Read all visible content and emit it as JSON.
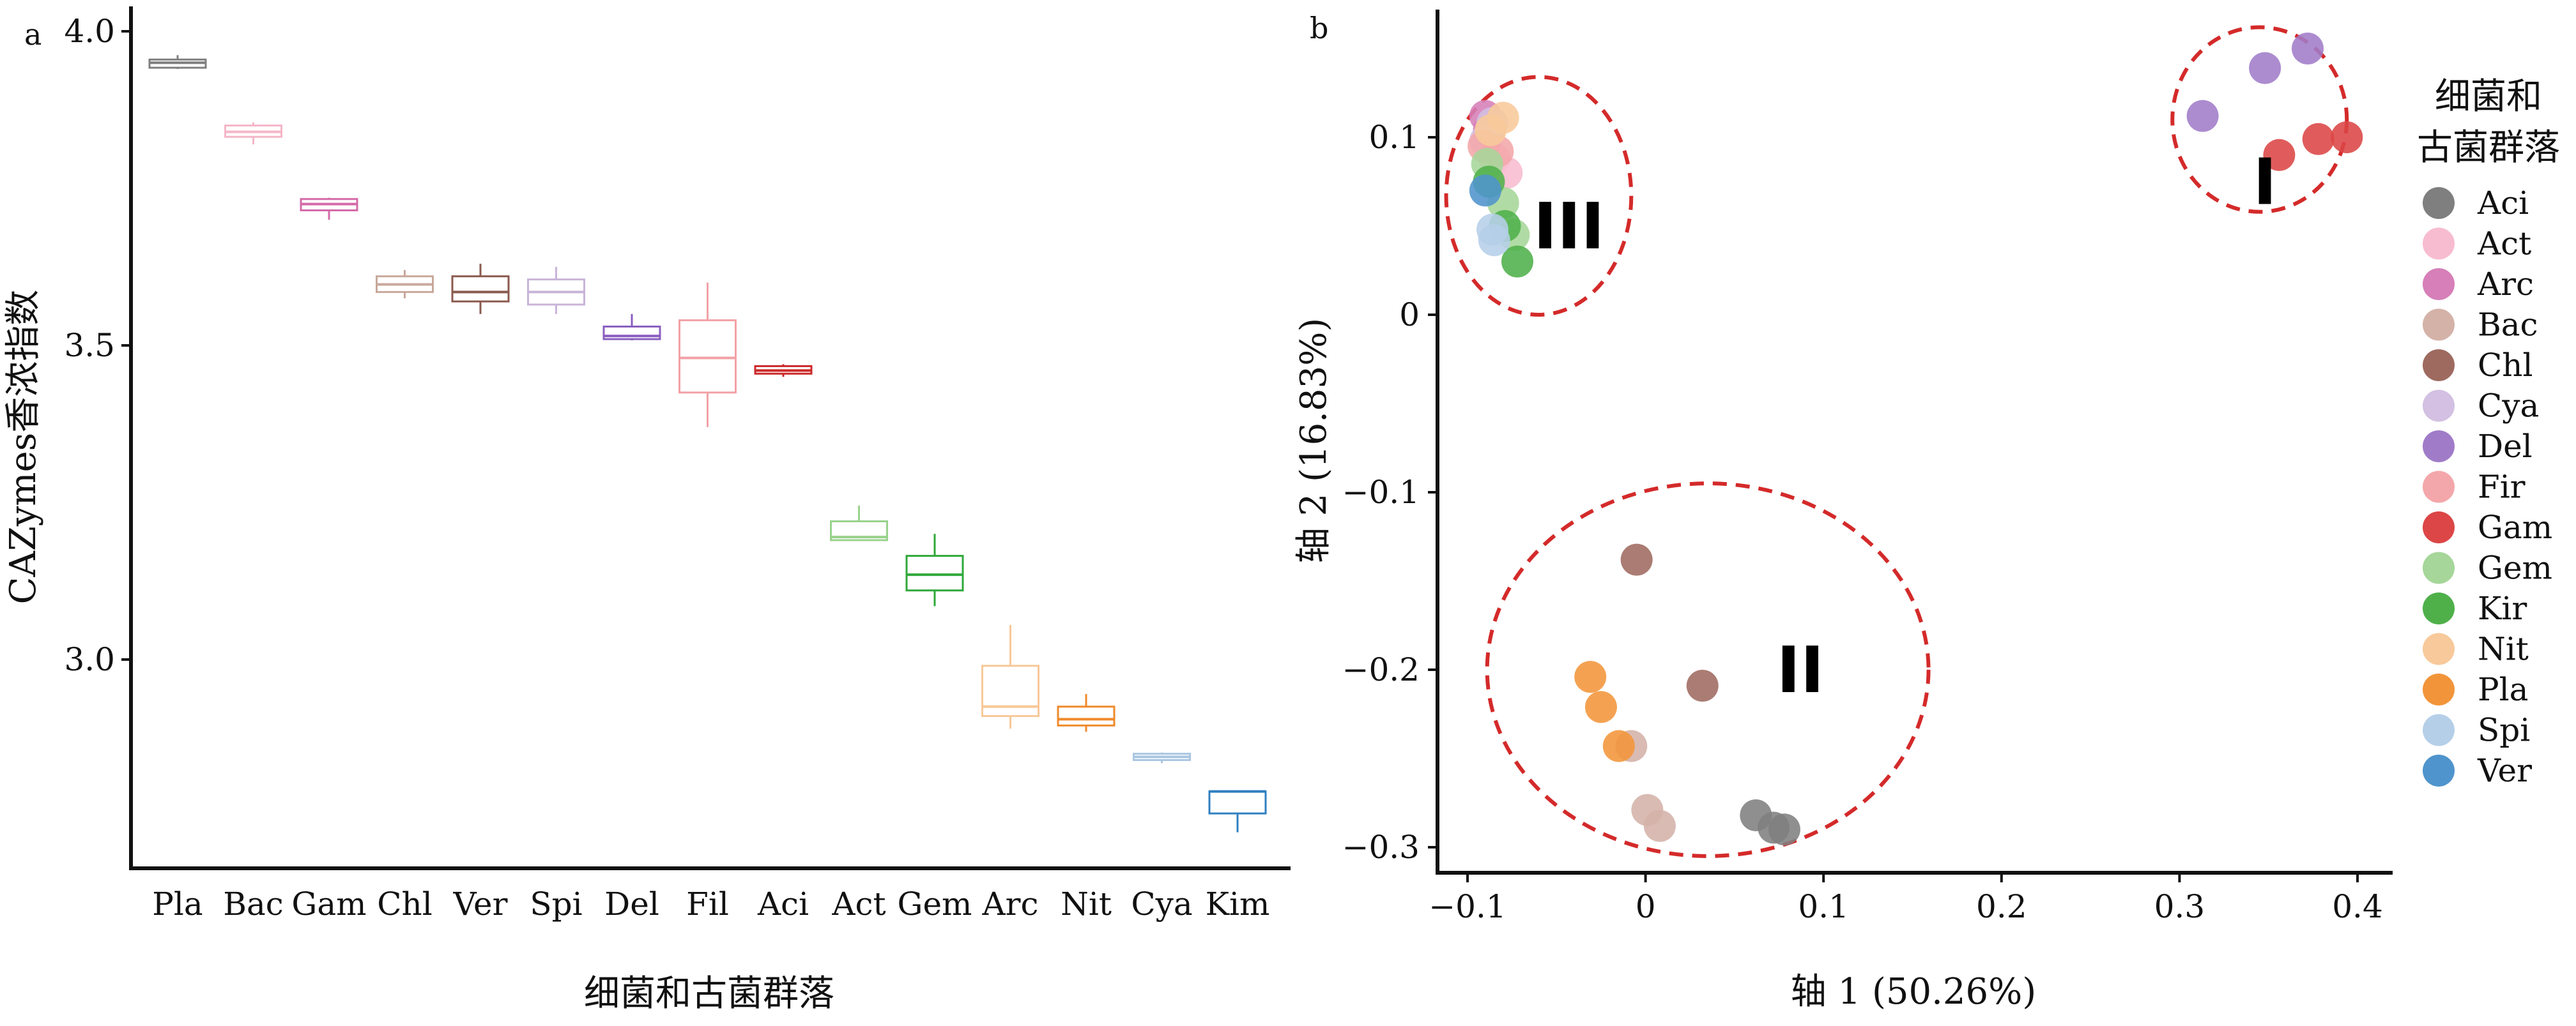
{
  "panel_a": {
    "letter": "a"
  },
  "panel_b": {
    "letter": "b"
  },
  "chart_data": [
    {
      "type": "box",
      "ylabel": "CAZymes香浓指数",
      "xlabel": "细菌和古菌群落",
      "ylim": [
        2.68,
        4.0
      ],
      "yticks": [
        3.0,
        3.5,
        4.0
      ],
      "ytick_labels": [
        "3.0",
        "3.5",
        "4.0"
      ],
      "categories": [
        "Pla",
        "Bac",
        "Gam",
        "Chl",
        "Ver",
        "Spi",
        "Del",
        "Fil",
        "Aci",
        "Act",
        "Gem",
        "Arc",
        "Nit",
        "Cya",
        "Kim"
      ],
      "colors": [
        "#7f7f7f",
        "#f4b6c8",
        "#d46aa8",
        "#c8a89b",
        "#8b5a4e",
        "#c8b4d8",
        "#8a5fc0",
        "#f2a1a6",
        "#cc2a2a",
        "#98d28c",
        "#2fa83a",
        "#f8c898",
        "#ef8a2a",
        "#a9c6e2",
        "#2f7fc0"
      ],
      "boxes": [
        {
          "min": 3.94,
          "q1": 3.942,
          "median": 3.95,
          "q3": 3.955,
          "max": 3.962
        },
        {
          "min": 3.82,
          "q1": 3.832,
          "median": 3.84,
          "q3": 3.85,
          "max": 3.855
        },
        {
          "min": 3.7,
          "q1": 3.715,
          "median": 3.725,
          "q3": 3.733,
          "max": 3.735
        },
        {
          "min": 3.575,
          "q1": 3.585,
          "median": 3.597,
          "q3": 3.61,
          "max": 3.62
        },
        {
          "min": 3.55,
          "q1": 3.57,
          "median": 3.585,
          "q3": 3.61,
          "max": 3.63
        },
        {
          "min": 3.55,
          "q1": 3.565,
          "median": 3.585,
          "q3": 3.605,
          "max": 3.625
        },
        {
          "min": 3.508,
          "q1": 3.51,
          "median": 3.515,
          "q3": 3.53,
          "max": 3.55
        },
        {
          "min": 3.37,
          "q1": 3.425,
          "median": 3.48,
          "q3": 3.54,
          "max": 3.6
        },
        {
          "min": 3.45,
          "q1": 3.455,
          "median": 3.46,
          "q3": 3.467,
          "max": 3.47
        },
        {
          "min": 3.19,
          "q1": 3.19,
          "median": 3.195,
          "q3": 3.22,
          "max": 3.245
        },
        {
          "min": 3.085,
          "q1": 3.11,
          "median": 3.135,
          "q3": 3.165,
          "max": 3.2
        },
        {
          "min": 2.89,
          "q1": 2.91,
          "median": 2.925,
          "q3": 2.99,
          "max": 3.055
        },
        {
          "min": 2.885,
          "q1": 2.895,
          "median": 2.905,
          "q3": 2.925,
          "max": 2.945
        },
        {
          "min": 2.835,
          "q1": 2.84,
          "median": 2.845,
          "q3": 2.85,
          "max": 2.852
        },
        {
          "min": 2.725,
          "q1": 2.755,
          "median": 2.79,
          "q3": 2.79,
          "max": 2.79
        }
      ]
    },
    {
      "type": "scatter",
      "xlabel": "轴 1 (50.26%)",
      "ylabel": "轴 2 (16.83%)",
      "xlim": [
        -0.12,
        0.42
      ],
      "ylim": [
        -0.31,
        0.17
      ],
      "xticks": [
        -0.1,
        0,
        0.1,
        0.2,
        0.3,
        0.4
      ],
      "xtick_labels": [
        "−0.1",
        "0",
        "0.1",
        "0.2",
        "0.3",
        "0.4"
      ],
      "yticks": [
        -0.3,
        -0.2,
        -0.1,
        0,
        0.1
      ],
      "ytick_labels": [
        "−0.3",
        "−0.2",
        "−0.1",
        "0",
        "0.1"
      ],
      "legend": {
        "title_line1": "细菌和",
        "title_line2": "古菌群落",
        "position": "right"
      },
      "series": [
        {
          "name": "Aci",
          "color": "#7f7f7f",
          "points": [
            [
              0.062,
              -0.282
            ],
            [
              0.072,
              -0.289
            ],
            [
              0.078,
              -0.29
            ]
          ]
        },
        {
          "name": "Act",
          "color": "#f7bcd0",
          "points": [
            [
              -0.085,
              0.088
            ],
            [
              -0.078,
              0.08
            ]
          ]
        },
        {
          "name": "Arc",
          "color": "#d67fb8",
          "points": [
            [
              -0.09,
              0.112
            ],
            [
              -0.088,
              0.104
            ]
          ]
        },
        {
          "name": "Bac",
          "color": "#d4b2a8",
          "points": [
            [
              -0.008,
              -0.243
            ],
            [
              0.001,
              -0.279
            ],
            [
              0.008,
              -0.288
            ]
          ]
        },
        {
          "name": "Chl",
          "color": "#9e6a60",
          "points": [
            [
              -0.005,
              -0.138
            ],
            [
              0.032,
              -0.209
            ]
          ]
        },
        {
          "name": "Cya",
          "color": "#d3c0e2",
          "points": [
            [
              -0.086,
              0.108
            ],
            [
              -0.09,
              0.098
            ]
          ]
        },
        {
          "name": "Del",
          "color": "#a07cc8",
          "points": [
            [
              0.313,
              0.112
            ],
            [
              0.348,
              0.139
            ],
            [
              0.372,
              0.15
            ]
          ]
        },
        {
          "name": "Fir",
          "color": "#f4a7aa",
          "points": [
            [
              -0.091,
              0.095
            ],
            [
              -0.083,
              0.092
            ]
          ]
        },
        {
          "name": "Gam",
          "color": "#dc4646",
          "points": [
            [
              0.356,
              0.09
            ],
            [
              0.378,
              0.099
            ],
            [
              0.394,
              0.1
            ]
          ]
        },
        {
          "name": "Gem",
          "color": "#a6d699",
          "points": [
            [
              -0.089,
              0.085
            ],
            [
              -0.08,
              0.063
            ],
            [
              -0.074,
              0.045
            ]
          ]
        },
        {
          "name": "Kir",
          "color": "#4fb04a",
          "points": [
            [
              -0.088,
              0.075
            ],
            [
              -0.079,
              0.05
            ],
            [
              -0.072,
              0.03
            ]
          ]
        },
        {
          "name": "Nit",
          "color": "#f8c99a",
          "points": [
            [
              -0.08,
              0.111
            ],
            [
              -0.087,
              0.104
            ]
          ]
        },
        {
          "name": "Pla",
          "color": "#f2953a",
          "points": [
            [
              -0.031,
              -0.204
            ],
            [
              -0.025,
              -0.221
            ],
            [
              -0.015,
              -0.243
            ]
          ]
        },
        {
          "name": "Spi",
          "color": "#b6cfe9",
          "points": [
            [
              -0.086,
              0.048
            ],
            [
              -0.085,
              0.042
            ]
          ]
        },
        {
          "name": "Ver",
          "color": "#4f94cc",
          "points": [
            [
              -0.09,
              0.07
            ]
          ]
        }
      ],
      "annotations": [
        {
          "label": "I",
          "cx": 0.345,
          "cy": 0.11,
          "rx": 0.049,
          "ry": 0.052
        },
        {
          "label": "II",
          "cx": 0.035,
          "cy": -0.2,
          "rx": 0.124,
          "ry": 0.105
        },
        {
          "label": "III",
          "cx": -0.06,
          "cy": 0.067,
          "rx": 0.052,
          "ry": 0.067
        }
      ]
    }
  ]
}
